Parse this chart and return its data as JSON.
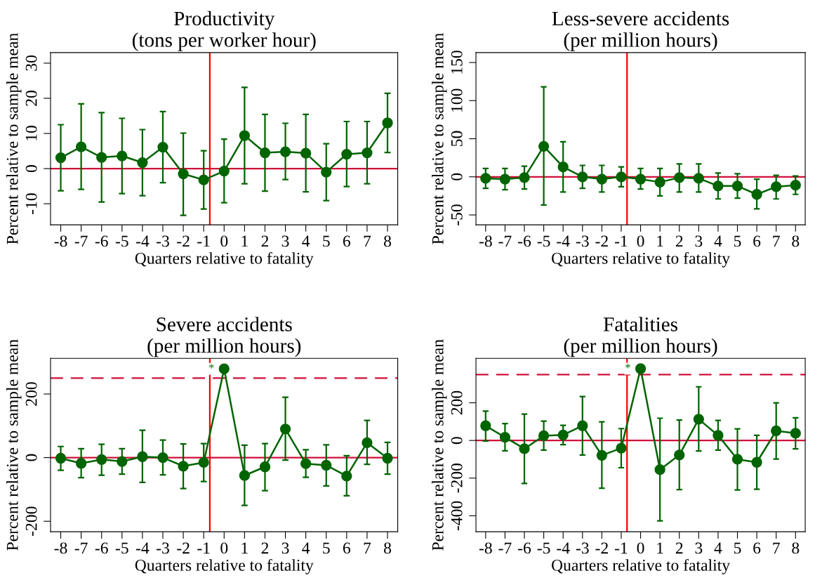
{
  "chart_data": [
    {
      "type": "line",
      "title": "Productivity\n(tons per worker hour)",
      "xlabel": "Quarters relative to fatality",
      "ylabel": "Percent relative to sample mean",
      "x": [
        -8,
        -7,
        -6,
        -5,
        -4,
        -3,
        -2,
        -1,
        0,
        1,
        2,
        3,
        4,
        5,
        6,
        7,
        8
      ],
      "xlim": [
        -8.5,
        8.5
      ],
      "xticks": [
        -8,
        -7,
        -6,
        -5,
        -4,
        -3,
        -2,
        -1,
        0,
        1,
        2,
        3,
        4,
        5,
        6,
        7,
        8
      ],
      "ylim": [
        -16,
        33
      ],
      "yticks": [
        -10,
        0,
        10,
        20,
        30
      ],
      "grid": false,
      "marker": "circle",
      "line_style": "solid",
      "series": [
        {
          "color": "#006400",
          "values": [
            3.1,
            6.2,
            3.2,
            3.6,
            1.7,
            6.1,
            -1.5,
            -3.2,
            -0.7,
            9.4,
            4.5,
            4.8,
            4.4,
            -1,
            4.1,
            4.5,
            13
          ],
          "errors": [
            [
              -6.3,
              12.5
            ],
            [
              -5.9,
              18.4
            ],
            [
              -9.5,
              15.9
            ],
            [
              -7.1,
              14.3
            ],
            [
              -7.7,
              11.1
            ],
            [
              -4,
              16.2
            ],
            [
              -13.3,
              10.1
            ],
            [
              -11.5,
              5.1
            ],
            [
              -9.7,
              8.4
            ],
            [
              -4.3,
              23.1
            ],
            [
              -6.4,
              15.4
            ],
            [
              -3.1,
              12.9
            ],
            [
              -6.6,
              15.4
            ],
            [
              -9.1,
              7.1
            ],
            [
              -5.1,
              13.4
            ],
            [
              -4.3,
              13.4
            ],
            [
              4.6,
              21.4
            ]
          ]
        }
      ],
      "ref_lines": [
        {
          "axis": "y",
          "value": 0,
          "color": "#d0103a",
          "line_style": "solid"
        },
        {
          "axis": "x",
          "value": -0.7,
          "color": "#ff0000",
          "line_style": "solid"
        }
      ]
    },
    {
      "type": "line",
      "title": "Less-severe accidents\n(per million hours)",
      "xlabel": "Quarters relative to fatality",
      "ylabel": "Percent relative to sample mean",
      "x": [
        -8,
        -7,
        -6,
        -5,
        -4,
        -3,
        -2,
        -1,
        0,
        1,
        2,
        3,
        4,
        5,
        6,
        7,
        8
      ],
      "xlim": [
        -8.5,
        8.5
      ],
      "xticks": [
        -8,
        -7,
        -6,
        -5,
        -4,
        -3,
        -2,
        -1,
        0,
        1,
        2,
        3,
        4,
        5,
        6,
        7,
        8
      ],
      "ylim": [
        -63,
        163
      ],
      "yticks": [
        -50,
        0,
        50,
        100,
        150
      ],
      "grid": false,
      "marker": "circle",
      "line_style": "solid",
      "series": [
        {
          "color": "#006400",
          "values": [
            -2,
            -3,
            -1,
            40,
            13,
            0,
            -3,
            0,
            -3,
            -7,
            -1,
            -2,
            -12,
            -12,
            -23,
            -13,
            -11
          ],
          "errors": [
            [
              -15,
              11
            ],
            [
              -17,
              11
            ],
            [
              -16,
              14
            ],
            [
              -37,
              118
            ],
            [
              -20,
              46
            ],
            [
              -15,
              15
            ],
            [
              -20,
              15
            ],
            [
              -13,
              13
            ],
            [
              -16,
              11
            ],
            [
              -25,
              11
            ],
            [
              -20,
              17
            ],
            [
              -20,
              17
            ],
            [
              -29,
              5
            ],
            [
              -28,
              4
            ],
            [
              -42,
              -3
            ],
            [
              -29,
              2
            ],
            [
              -23,
              1
            ]
          ]
        }
      ],
      "ref_lines": [
        {
          "axis": "y",
          "value": 0,
          "color": "#d0103a",
          "line_style": "solid"
        },
        {
          "axis": "x",
          "value": -0.7,
          "color": "#ff0000",
          "line_style": "solid"
        }
      ]
    },
    {
      "type": "line",
      "title": "Severe accidents\n(per million hours)",
      "xlabel": "Quarters relative to fatality",
      "ylabel": "Percent relative to sample mean",
      "x": [
        -8,
        -7,
        -6,
        -5,
        -4,
        -3,
        -2,
        -1,
        0,
        1,
        2,
        3,
        4,
        5,
        6,
        7,
        8
      ],
      "xlim": [
        -8.5,
        8.5
      ],
      "xticks": [
        -8,
        -7,
        -6,
        -5,
        -4,
        -3,
        -2,
        -1,
        0,
        1,
        2,
        3,
        4,
        5,
        6,
        7,
        8
      ],
      "ylim": [
        -233,
        312
      ],
      "yticks": [
        -200,
        0,
        200
      ],
      "grid": false,
      "marker": "circle",
      "line_style": "solid",
      "series": [
        {
          "color": "#006400",
          "values": [
            -2,
            -18,
            -6,
            -12,
            3,
            0,
            -27,
            -15,
            279,
            -56,
            -29,
            90,
            -19,
            -24,
            -58,
            47,
            -2
          ],
          "errors": [
            [
              -40,
              35
            ],
            [
              -63,
              28
            ],
            [
              -55,
              42
            ],
            [
              -52,
              28
            ],
            [
              -78,
              86
            ],
            [
              -54,
              55
            ],
            [
              -97,
              43
            ],
            [
              -75,
              44
            ],
            null,
            [
              -150,
              39
            ],
            [
              -104,
              44
            ],
            [
              -8,
              190
            ],
            [
              -62,
              25
            ],
            [
              -89,
              40
            ],
            [
              -120,
              6
            ],
            [
              -21,
              117
            ],
            [
              -52,
              48
            ]
          ]
        }
      ],
      "ref_lines": [
        {
          "axis": "y",
          "value": 0,
          "color": "#d0103a",
          "line_style": "solid"
        },
        {
          "axis": "y",
          "value": 250,
          "color": "#d0103a",
          "line_style": "dashed"
        },
        {
          "axis": "x",
          "value": -0.7,
          "color": "#ff0000",
          "line_style": "solid"
        }
      ],
      "annotations": [
        {
          "text": "*",
          "x": 0,
          "y": 279
        }
      ]
    },
    {
      "type": "line",
      "title": "Fatalities\n(per million hours)",
      "xlabel": "Quarters relative to fatality",
      "ylabel": "Percent relative to sample mean",
      "x": [
        -8,
        -7,
        -6,
        -5,
        -4,
        -3,
        -2,
        -1,
        0,
        1,
        2,
        3,
        4,
        5,
        6,
        7,
        8
      ],
      "xlim": [
        -8.5,
        8.5
      ],
      "xticks": [
        -8,
        -7,
        -6,
        -5,
        -4,
        -3,
        -2,
        -1,
        0,
        1,
        2,
        3,
        4,
        5,
        6,
        7,
        8
      ],
      "ylim": [
        -485,
        436
      ],
      "yticks": [
        -400,
        -200,
        0,
        200
      ],
      "grid": false,
      "marker": "circle",
      "line_style": "solid",
      "series": [
        {
          "color": "#006400",
          "values": [
            78,
            17,
            -44,
            25,
            29,
            78,
            -79,
            -41,
            381,
            -155,
            -77,
            113,
            27,
            -100,
            -116,
            51,
            38
          ],
          "errors": [
            [
              -3,
              156
            ],
            [
              -55,
              90
            ],
            [
              -228,
              140
            ],
            [
              -51,
              103
            ],
            [
              -22,
              80
            ],
            [
              -77,
              233
            ],
            [
              -254,
              99
            ],
            [
              -145,
              63
            ],
            null,
            [
              -427,
              118
            ],
            [
              -261,
              108
            ],
            [
              -56,
              285
            ],
            [
              -51,
              106
            ],
            [
              -263,
              62
            ],
            [
              -259,
              27
            ],
            [
              -99,
              200
            ],
            [
              -45,
              120
            ]
          ]
        }
      ],
      "ref_lines": [
        {
          "axis": "y",
          "value": 0,
          "color": "#d0103a",
          "line_style": "solid"
        },
        {
          "axis": "y",
          "value": 350,
          "color": "#d0103a",
          "line_style": "dashed"
        },
        {
          "axis": "x",
          "value": -0.7,
          "color": "#ff0000",
          "line_style": "solid"
        }
      ],
      "annotations": [
        {
          "text": "*",
          "x": 0,
          "y": 381
        }
      ]
    }
  ]
}
